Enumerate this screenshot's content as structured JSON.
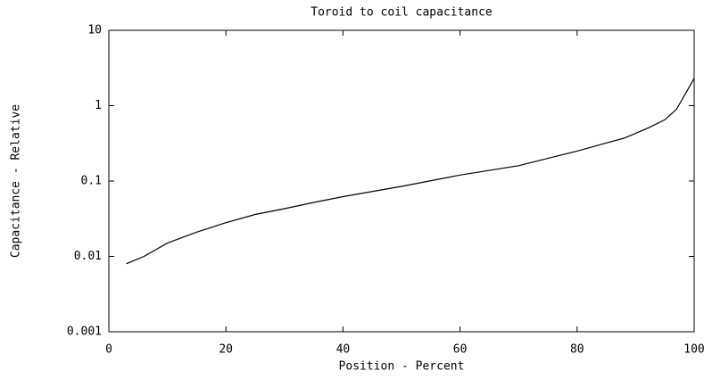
{
  "chart_data": {
    "type": "line",
    "title": "Toroid to coil capacitance",
    "x_label": "Position - Percent",
    "y_label": "Capacitance - Relative",
    "log_y": true,
    "grid": false,
    "series": [
      {
        "name": "Capacitance",
        "color": "#000000",
        "x": [
          3,
          6,
          10,
          15,
          20,
          25,
          30,
          35,
          40,
          50,
          60,
          70,
          75,
          80,
          85,
          88,
          92,
          95,
          97,
          100
        ],
        "values": [
          0.008,
          0.01,
          0.015,
          0.021,
          0.028,
          0.036,
          0.043,
          0.052,
          0.062,
          0.085,
          0.12,
          0.16,
          0.2,
          0.25,
          0.32,
          0.37,
          0.5,
          0.65,
          0.9,
          2.3
        ]
      }
    ],
    "xlim": [
      0,
      100
    ],
    "xticks": [
      0,
      20,
      40,
      60,
      80,
      100
    ],
    "ylim": [
      0.001,
      10
    ],
    "yticks": [
      0.001,
      0.01,
      0.1,
      1,
      10
    ]
  }
}
